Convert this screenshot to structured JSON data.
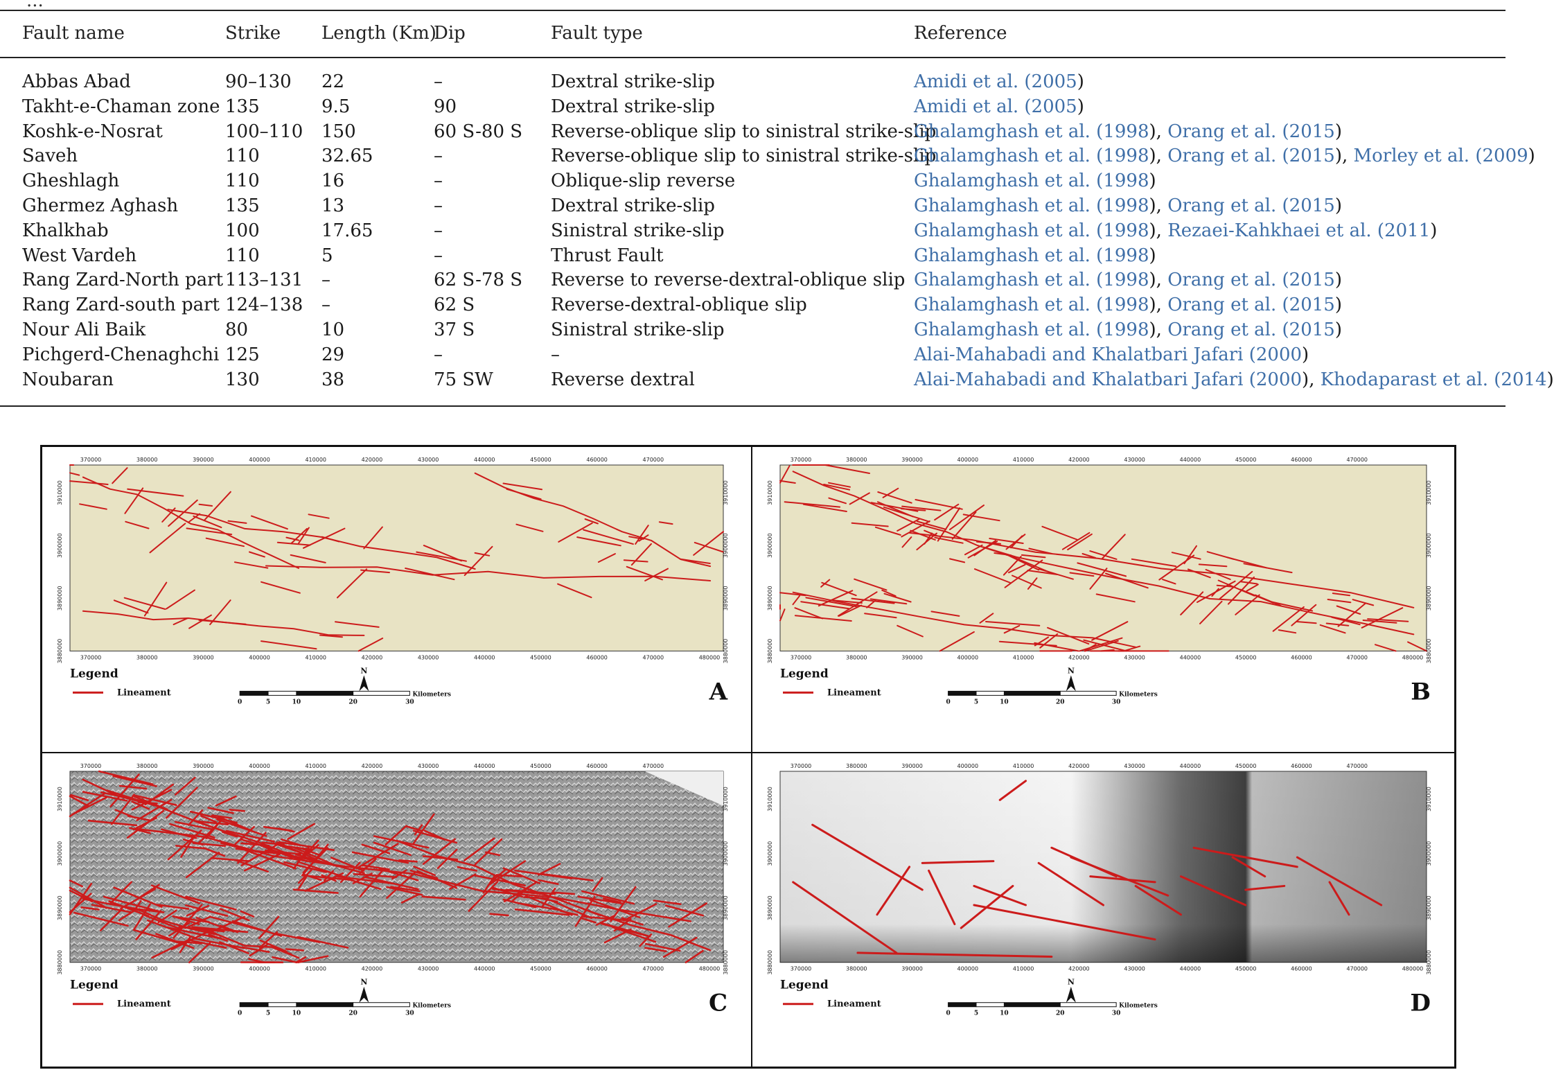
{
  "table": {
    "caption_fragment": "...",
    "columns": [
      "Fault name",
      "Strike",
      "Length (Km)",
      "Dip",
      "Fault type",
      "Reference"
    ],
    "rows": [
      {
        "name": "Abbas Abad",
        "strike": "90–130",
        "length": "22",
        "dip": "–",
        "type": "Dextral strike-slip",
        "refs": [
          "Amidi et al. (2005)"
        ]
      },
      {
        "name": "Takht-e-Chaman zone",
        "strike": "135",
        "length": "9.5",
        "dip": "90",
        "type": "Dextral strike-slip",
        "refs": [
          "Amidi et al. (2005)"
        ]
      },
      {
        "name": "Koshk-e-Nosrat",
        "strike": "100–110",
        "length": "150",
        "dip": "60 S-80 S",
        "type": "Reverse-oblique slip to sinistral strike-slip",
        "refs": [
          "Ghalamghash et al. (1998)",
          "Orang et al. (2015)"
        ]
      },
      {
        "name": "Saveh",
        "strike": "110",
        "length": "32.65",
        "dip": "–",
        "type": "Reverse-oblique slip to sinistral strike-slip",
        "refs": [
          "Ghalamghash et al. (1998)",
          "Orang et al. (2015)",
          "Morley et al. (2009)"
        ]
      },
      {
        "name": "Gheshlagh",
        "strike": "110",
        "length": "16",
        "dip": "–",
        "type": "Oblique-slip reverse",
        "refs": [
          "Ghalamghash et al. (1998)"
        ]
      },
      {
        "name": "Ghermez Aghash",
        "strike": "135",
        "length": "13",
        "dip": "–",
        "type": "Dextral strike-slip",
        "refs": [
          "Ghalamghash et al. (1998)",
          "Orang et al. (2015)"
        ]
      },
      {
        "name": "Khalkhab",
        "strike": "100",
        "length": "17.65",
        "dip": "–",
        "type": "Sinistral strike-slip",
        "refs": [
          "Ghalamghash et al. (1998)",
          "Rezaei-Kahkhaei et al. (2011)"
        ]
      },
      {
        "name": "West Vardeh",
        "strike": "110",
        "length": "5",
        "dip": "–",
        "type": "Thrust Fault",
        "refs": [
          "Ghalamghash et al. (1998)"
        ]
      },
      {
        "name": "Rang Zard-North part",
        "strike": "113–131",
        "length": "–",
        "dip": "62 S-78 S",
        "type": "Reverse to reverse-dextral-oblique slip",
        "refs": [
          "Ghalamghash et al. (1998)",
          "Orang et al. (2015)"
        ]
      },
      {
        "name": "Rang Zard-south part",
        "strike": "124–138",
        "length": "–",
        "dip": "62 S",
        "type": "Reverse-dextral-oblique slip",
        "refs": [
          "Ghalamghash et al. (1998)",
          "Orang et al. (2015)"
        ]
      },
      {
        "name": "Nour Ali Baik",
        "strike": "80",
        "length": "10",
        "dip": "37 S",
        "type": "Sinistral strike-slip",
        "refs": [
          "Ghalamghash et al. (1998)",
          "Orang et al. (2015)"
        ]
      },
      {
        "name": "Pichgerd-Chenaghchi",
        "strike": "125",
        "length": "29",
        "dip": "–",
        "type": "–",
        "refs": [
          "Alai-Mahabadi and Khalatbari Jafari (2000)"
        ]
      },
      {
        "name": "Noubaran",
        "strike": "130",
        "length": "38",
        "dip": "75 SW",
        "type": "Reverse dextral",
        "refs": [
          "Alai-Mahabadi and Khalatbari Jafari (2000)",
          "Khodaparast et al. (2014)"
        ]
      }
    ]
  },
  "figure": {
    "x_ticks": [
      "370000",
      "380000",
      "390000",
      "400000",
      "410000",
      "420000",
      "430000",
      "440000",
      "450000",
      "460000",
      "470000",
      "480000"
    ],
    "y_ticks": [
      "3910000",
      "3900000",
      "3890000",
      "3880000"
    ],
    "legend_title": "Legend",
    "legend_item": "Lineament",
    "north_label": "N",
    "scale_ticks": [
      "0",
      "5",
      "10",
      "20",
      "30"
    ],
    "scale_unit": "Kilometers",
    "panels": [
      {
        "letter": "A",
        "background": "beige"
      },
      {
        "letter": "B",
        "background": "beige"
      },
      {
        "letter": "C",
        "background": "hillshade"
      },
      {
        "letter": "D",
        "background": "dem"
      }
    ],
    "colors": {
      "lineament": "#cc1b1b",
      "beige": "#e8e3c4",
      "link": "#3f6fa8"
    }
  }
}
